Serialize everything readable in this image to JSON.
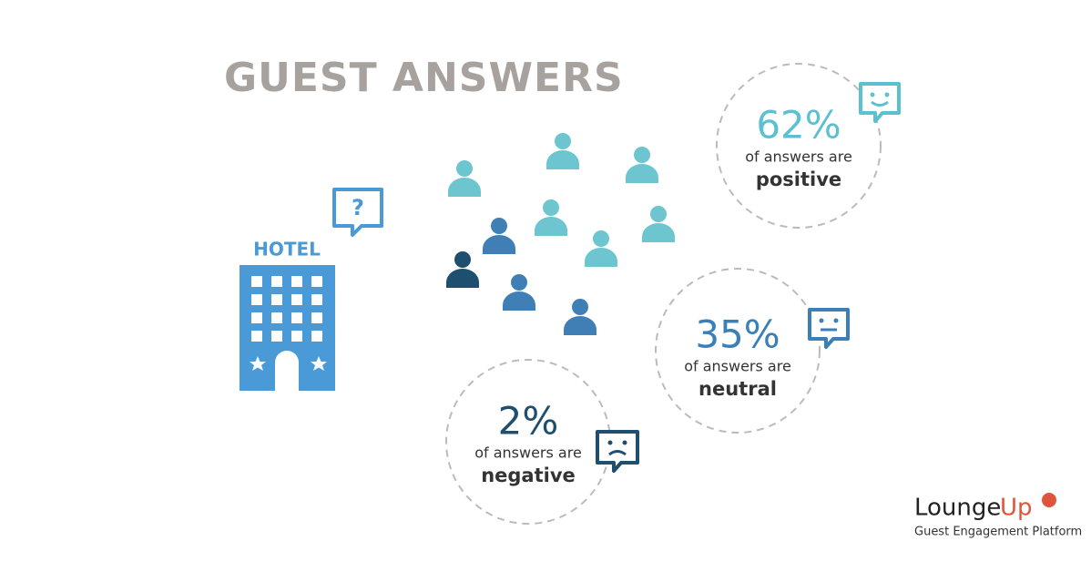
{
  "title": "GUEST ANSWERS",
  "hotel": {
    "label": "HOTEL"
  },
  "stats": [
    {
      "value": "62%",
      "caption": "of answers are",
      "sentiment": "positive"
    },
    {
      "value": "35%",
      "caption": "of answers are",
      "sentiment": "neutral"
    },
    {
      "value": "2%",
      "caption": "of answers are",
      "sentiment": "negative"
    }
  ],
  "logo": {
    "name_part1": "Lounge",
    "name_part2": "Up",
    "tagline": "Guest Engagement Platform"
  }
}
